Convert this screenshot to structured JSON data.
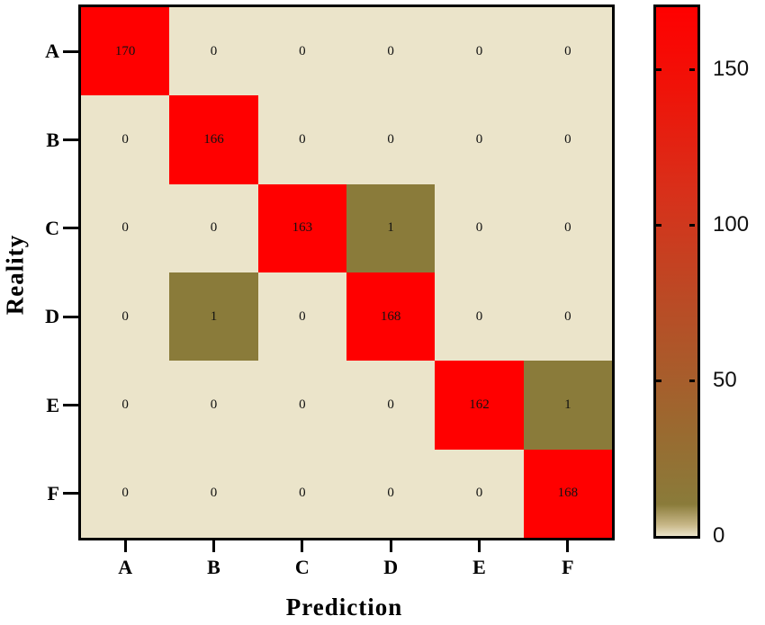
{
  "chart_data": {
    "type": "heatmap",
    "title": "",
    "xlabel": "Prediction",
    "ylabel": "Reality",
    "x_categories": [
      "A",
      "B",
      "C",
      "D",
      "E",
      "F"
    ],
    "y_categories": [
      "A",
      "B",
      "C",
      "D",
      "E",
      "F"
    ],
    "matrix": [
      [
        170,
        0,
        0,
        0,
        0,
        0
      ],
      [
        0,
        166,
        0,
        0,
        0,
        0
      ],
      [
        0,
        0,
        163,
        1,
        0,
        0
      ],
      [
        0,
        1,
        0,
        168,
        0,
        0
      ],
      [
        0,
        0,
        0,
        0,
        162,
        1
      ],
      [
        0,
        0,
        0,
        0,
        0,
        168
      ]
    ],
    "colorbar": {
      "ticks": [
        0,
        50,
        100,
        150
      ],
      "range": [
        0,
        170
      ],
      "colors": {
        "zero": "#ebe4ca",
        "low": "#8a7b3a",
        "high": "#ff0000"
      }
    },
    "legend_position": "right"
  }
}
